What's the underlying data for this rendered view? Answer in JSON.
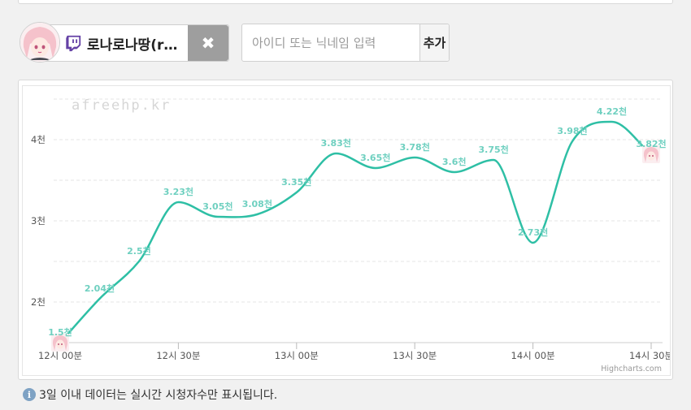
{
  "streamer": {
    "name": "로나로나땅(r…",
    "platform_icon": "twitch-icon",
    "remove_label": "✖"
  },
  "search": {
    "placeholder": "아이디 또는 닉네임 입력",
    "value": "",
    "add_label": "추가"
  },
  "watermark": "afreehp.kr",
  "credits": "Highcharts.com",
  "info": {
    "icon": "i",
    "text": "3일 이내 데이터는 실시간 시청자수만 표시됩니다."
  },
  "colors": {
    "line": "#2ebfa5",
    "label": "#6fd0c0",
    "twitch": "#6441a5"
  },
  "chart_data": {
    "type": "line",
    "title": "",
    "xlabel": "",
    "ylabel": "",
    "x_ticks": [
      "12시 00분",
      "12시 30분",
      "13시 00분",
      "13시 30분",
      "14시 00분",
      "14시 30분"
    ],
    "x_tick_minutes": [
      0,
      30,
      60,
      90,
      120,
      150
    ],
    "y_ticks": [
      "2천",
      "3천",
      "4천"
    ],
    "y_tick_values": [
      2000,
      3000,
      4000
    ],
    "ylim": [
      1300,
      4600
    ],
    "grid": "horizontal dashed",
    "series": [
      {
        "x_minutes": [
          0,
          10,
          20,
          30,
          40,
          50,
          60,
          70,
          80,
          90,
          100,
          110,
          120,
          130,
          140,
          150
        ],
        "values": [
          1500,
          2040,
          2500,
          3230,
          3050,
          3080,
          3350,
          3830,
          3650,
          3780,
          3600,
          3750,
          2730,
          3980,
          4220,
          3820
        ],
        "labels": [
          "1.5천",
          "2.04천",
          "2.5천",
          "3.23천",
          "3.05천",
          "3.08천",
          "3.35천",
          "3.83천",
          "3.65천",
          "3.78천",
          "3.6천",
          "3.75천",
          "2.73천",
          "3.98천",
          "4.22천",
          "3.82천"
        ]
      }
    ]
  }
}
